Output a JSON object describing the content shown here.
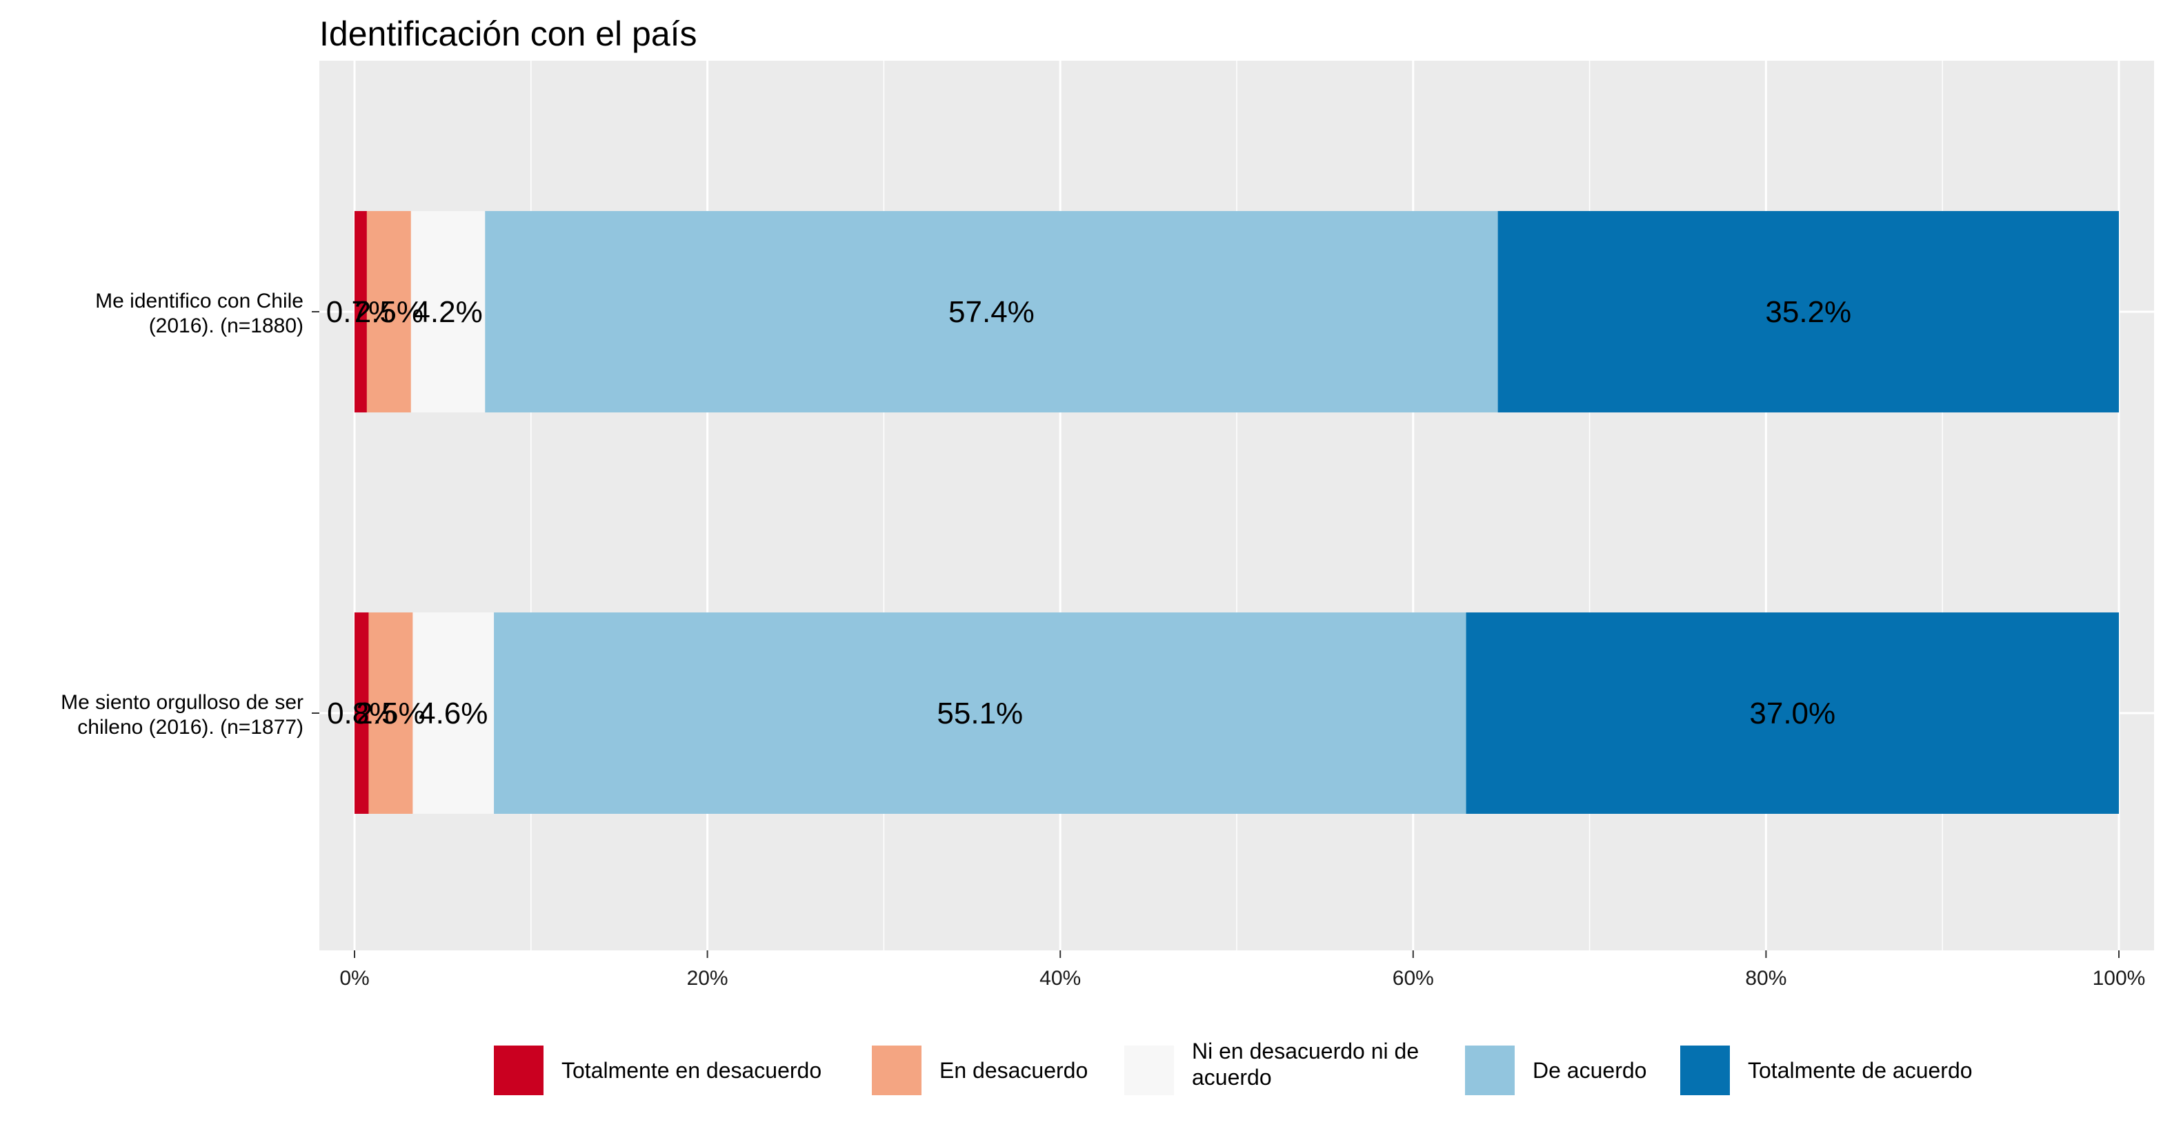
{
  "chart_data": {
    "type": "bar",
    "orientation": "horizontal",
    "stacked": true,
    "title": "Identificación con el país",
    "xlabel": "",
    "ylabel": "",
    "xlim": [
      0,
      100
    ],
    "x_ticks": [
      0,
      20,
      40,
      60,
      80,
      100
    ],
    "x_tick_labels": [
      "0%",
      "20%",
      "40%",
      "60%",
      "80%",
      "100%"
    ],
    "grid": true,
    "legend_position": "bottom",
    "categories": [
      {
        "line1": "Me identifico con Chile",
        "line2": "(2016). (n=1880)"
      },
      {
        "line1": "Me siento orgulloso de ser",
        "line2": "chileno (2016). (n=1877)"
      }
    ],
    "series": [
      {
        "name": "Totalmente en desacuerdo",
        "color": "#ca0020",
        "values": [
          0.7,
          0.8
        ],
        "labels": [
          "0.7%",
          "0.8%"
        ]
      },
      {
        "name": "En desacuerdo",
        "color": "#f4a582",
        "values": [
          2.5,
          2.5
        ],
        "labels": [
          "2.5%",
          "2.5%"
        ]
      },
      {
        "name": "Ni en desacuerdo ni de acuerdo",
        "legend_lines": [
          "Ni en desacuerdo ni de",
          "acuerdo"
        ],
        "color": "#f7f7f7",
        "values": [
          4.2,
          4.6
        ],
        "labels": [
          "4.2%",
          "4.6%"
        ]
      },
      {
        "name": "De acuerdo",
        "color": "#92c5de",
        "values": [
          57.4,
          55.1
        ],
        "labels": [
          "57.4%",
          "55.1%"
        ]
      },
      {
        "name": "Totalmente de acuerdo",
        "color": "#0571b0",
        "values": [
          35.2,
          37.0
        ],
        "labels": [
          "35.2%",
          "37.0%"
        ]
      }
    ],
    "colors": {
      "panel": "#ebebeb",
      "grid": "#ffffff",
      "tick": "#333333"
    }
  }
}
